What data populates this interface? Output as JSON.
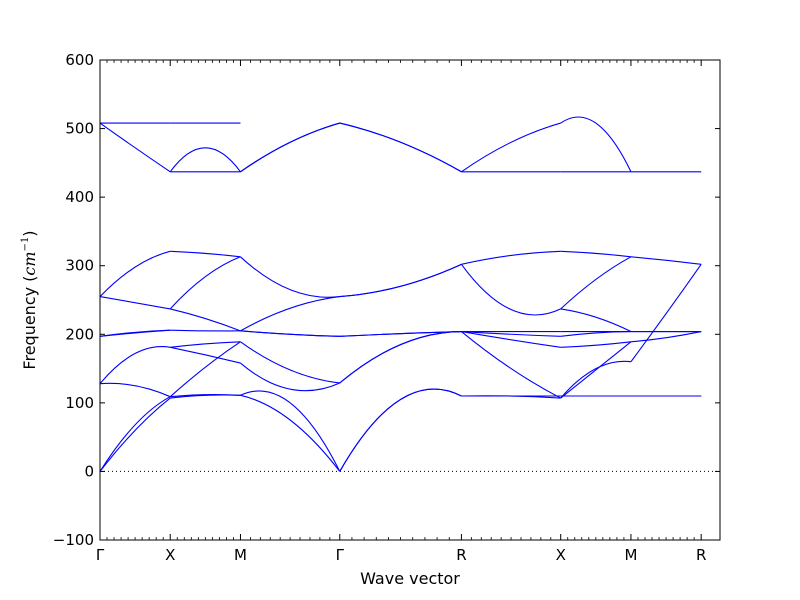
{
  "chart_data": {
    "type": "line",
    "title": "",
    "xlabel": "Wave vector",
    "ylabel": "Frequency (cm⁻¹)",
    "ylabel_parts": {
      "prefix": "Frequency (",
      "base": "cm",
      "exponent": "−1",
      "suffix": ")"
    },
    "ylim": [
      -100,
      600
    ],
    "yticks": [
      -100,
      0,
      100,
      200,
      300,
      400,
      500,
      600
    ],
    "ytick_labels": [
      "−100",
      "0",
      "100",
      "200",
      "300",
      "400",
      "500",
      "600"
    ],
    "xlim": [
      0,
      8.828
    ],
    "xticks": [
      {
        "pos": 0,
        "label": "Γ"
      },
      {
        "pos": 1,
        "label": "X"
      },
      {
        "pos": 2,
        "label": "M"
      },
      {
        "pos": 3.414,
        "label": "Γ"
      },
      {
        "pos": 5.146,
        "label": "R"
      },
      {
        "pos": 6.56,
        "label": "X"
      },
      {
        "pos": 7.56,
        "label": "M"
      },
      {
        "pos": 8.56,
        "label": "R"
      }
    ],
    "grid": false,
    "zero_line": {
      "y": 0,
      "style": "dotted"
    },
    "line_color": "#0000ff",
    "segments": [
      {
        "name": "Γ-X",
        "x0": 0,
        "x1": 1,
        "branches": [
          [
            0,
            60,
            107
          ],
          [
            0,
            68,
            109
          ],
          [
            128,
            125,
            109
          ],
          [
            128,
            172,
            181
          ],
          [
            197,
            203,
            206
          ],
          [
            197,
            202,
            206
          ],
          [
            255,
            246,
            237
          ],
          [
            255,
            298,
            321
          ],
          [
            508,
            472,
            437
          ],
          [
            508,
            508,
            508
          ]
        ]
      },
      {
        "name": "X-M",
        "x0": 1,
        "x1": 2,
        "branches": [
          [
            107,
            111,
            111
          ],
          [
            109,
            112,
            111
          ],
          [
            109,
            152,
            189
          ],
          [
            181,
            186,
            189
          ],
          [
            181,
            170,
            158
          ],
          [
            206,
            205,
            205
          ],
          [
            237,
            223,
            205
          ],
          [
            237,
            284,
            313
          ],
          [
            321,
            318,
            313
          ],
          [
            437,
            437,
            437
          ],
          [
            437,
            472,
            437
          ],
          [
            508,
            508,
            508
          ]
        ]
      },
      {
        "name": "M-Γ",
        "x0": 2,
        "x1": 3.414,
        "branches": [
          [
            111,
            75,
            0
          ],
          [
            111,
            100,
            0
          ],
          [
            189,
            148,
            129
          ],
          [
            158,
            120,
            129
          ],
          [
            205,
            200,
            197
          ],
          [
            205,
            200,
            197
          ],
          [
            205,
            238,
            255
          ],
          [
            313,
            265,
            255
          ],
          [
            437,
            480,
            508
          ],
          [
            437,
            480,
            508
          ]
        ]
      },
      {
        "name": "Γ-R",
        "x0": 3.414,
        "x1": 5.146,
        "branches": [
          [
            0,
            105,
            110
          ],
          [
            0,
            105,
            110
          ],
          [
            129,
            185,
            204
          ],
          [
            129,
            185,
            204
          ],
          [
            197,
            201,
            204
          ],
          [
            197,
            201,
            204
          ],
          [
            255,
            270,
            302
          ],
          [
            255,
            270,
            302
          ],
          [
            508,
            480,
            437
          ],
          [
            508,
            480,
            437
          ]
        ]
      },
      {
        "name": "R-X",
        "x0": 5.146,
        "x1": 6.56,
        "branches": [
          [
            110,
            110,
            110
          ],
          [
            110,
            110,
            107
          ],
          [
            204,
            150,
            107
          ],
          [
            204,
            192,
            181
          ],
          [
            204,
            204,
            204
          ],
          [
            204,
            200,
            197
          ],
          [
            302,
            236,
            237
          ],
          [
            302,
            315,
            321
          ],
          [
            437,
            437,
            437
          ],
          [
            437,
            480,
            508
          ]
        ]
      },
      {
        "name": "X-M",
        "x0": 6.56,
        "x1": 7.56,
        "branches": [
          [
            110,
            110,
            110
          ],
          [
            110,
            110,
            110
          ],
          [
            107,
            148,
            189
          ],
          [
            107,
            150,
            160
          ],
          [
            181,
            184,
            189
          ],
          [
            197,
            202,
            204
          ],
          [
            204,
            204,
            204
          ],
          [
            237,
            225,
            204
          ],
          [
            237,
            280,
            313
          ],
          [
            321,
            318,
            313
          ],
          [
            437,
            437,
            437
          ],
          [
            508,
            508,
            437
          ]
        ]
      },
      {
        "name": "M-R",
        "x0": 7.56,
        "x1": 8.56,
        "branches": [
          [
            110,
            110,
            110
          ],
          [
            110,
            110,
            110
          ],
          [
            189,
            195,
            204
          ],
          [
            160,
            230,
            302
          ],
          [
            204,
            204,
            204
          ],
          [
            204,
            204,
            204
          ],
          [
            313,
            308,
            302
          ],
          [
            437,
            437,
            437
          ]
        ]
      }
    ]
  }
}
